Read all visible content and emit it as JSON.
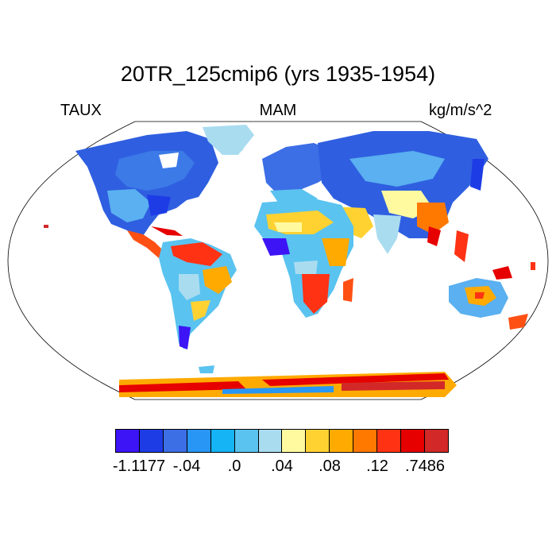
{
  "title": "20TR_125cmip6 (yrs 1935-1954)",
  "left_label": "TAUX",
  "center_label": "MAM",
  "right_label": "kg/m/s^2",
  "colorbar": {
    "colors": [
      "#3c14f5",
      "#1e3ce6",
      "#3c6ee6",
      "#2896f5",
      "#14b4f5",
      "#5ac3f0",
      "#aadcf0",
      "#fffaa0",
      "#ffd232",
      "#ffaa00",
      "#ff7800",
      "#ff3214",
      "#e60000",
      "#d22828"
    ],
    "tick_labels": [
      "-1.1177",
      "-.04",
      ".0",
      ".04",
      ".08",
      ".12",
      ".7486"
    ],
    "tick_edges": [
      1,
      3,
      5,
      7,
      9,
      11,
      13
    ]
  }
}
